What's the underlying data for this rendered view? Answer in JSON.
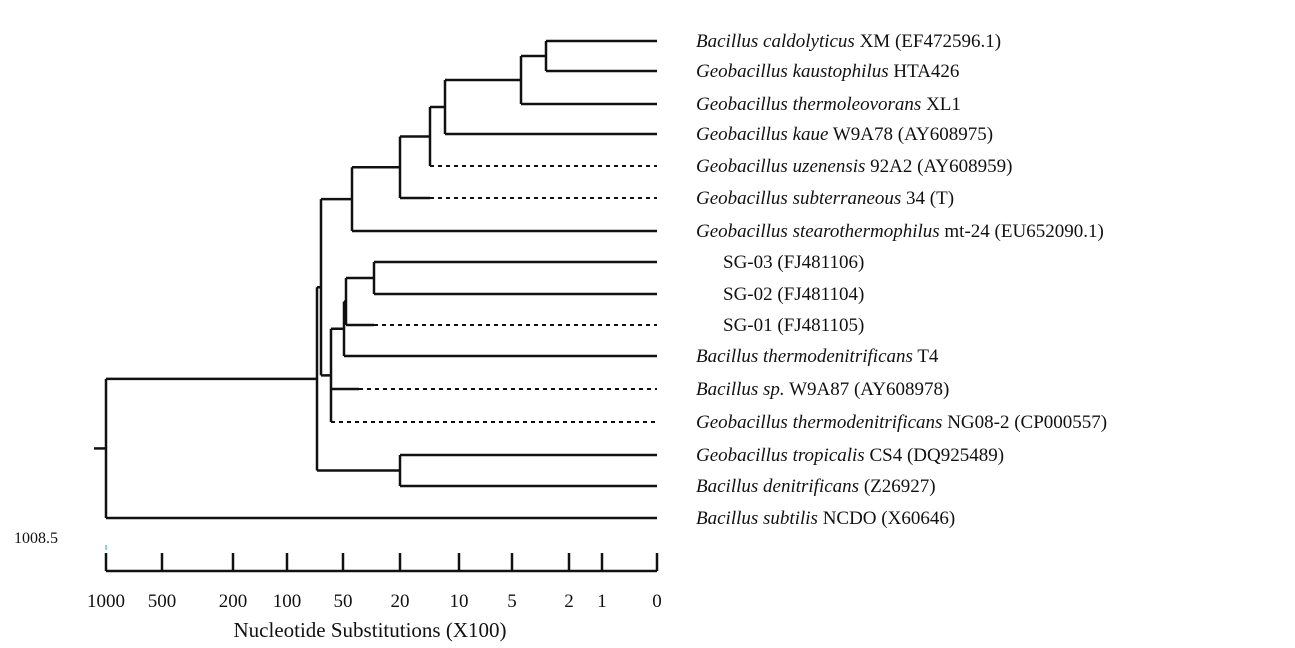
{
  "scale_value": "1008.5",
  "axis": {
    "title": "Nucleotide Substitutions (X100)",
    "ticks": [
      "1000",
      "500",
      "200",
      "100",
      "50",
      "20",
      "10",
      "5",
      "2",
      "1",
      "0"
    ]
  },
  "taxa": [
    {
      "italic": "Bacillus caldolyticus",
      "rest": " XM (EF472596.1)"
    },
    {
      "italic": "Geobacillus kaustophilus",
      "rest": " HTA426"
    },
    {
      "italic": "Geobacillus thermoleovorans",
      "rest": " XL1"
    },
    {
      "italic": "Geobacillus kaue",
      "rest": " W9A78 (AY608975)"
    },
    {
      "italic": "Geobacillus uzenensis",
      "rest": " 92A2 (AY608959)"
    },
    {
      "italic": "Geobacillus subterraneous",
      "rest": "  34 (T)"
    },
    {
      "italic": "Geobacillus stearothermophilus",
      "rest": " mt-24 (EU652090.1)"
    },
    {
      "italic": "",
      "rest": "SG-03 (FJ481106)"
    },
    {
      "italic": "",
      "rest": "SG-02 (FJ481104)"
    },
    {
      "italic": "",
      "rest": "SG-01 (FJ481105)"
    },
    {
      "italic": "Bacillus thermodenitrificans",
      "rest": " T4"
    },
    {
      "italic": "Bacillus sp.",
      "rest": " W9A87 (AY608978)"
    },
    {
      "italic": "Geobacillus thermodenitrificans",
      "rest": " NG08-2 (CP000557)"
    },
    {
      "italic": "Geobacillus tropicalis",
      "rest": " CS4 (DQ925489)"
    },
    {
      "italic": "Bacillus denitrificans",
      "rest": " (Z26927)"
    },
    {
      "italic": "Bacillus subtilis",
      "rest": " NCDO (X60646)"
    }
  ]
}
